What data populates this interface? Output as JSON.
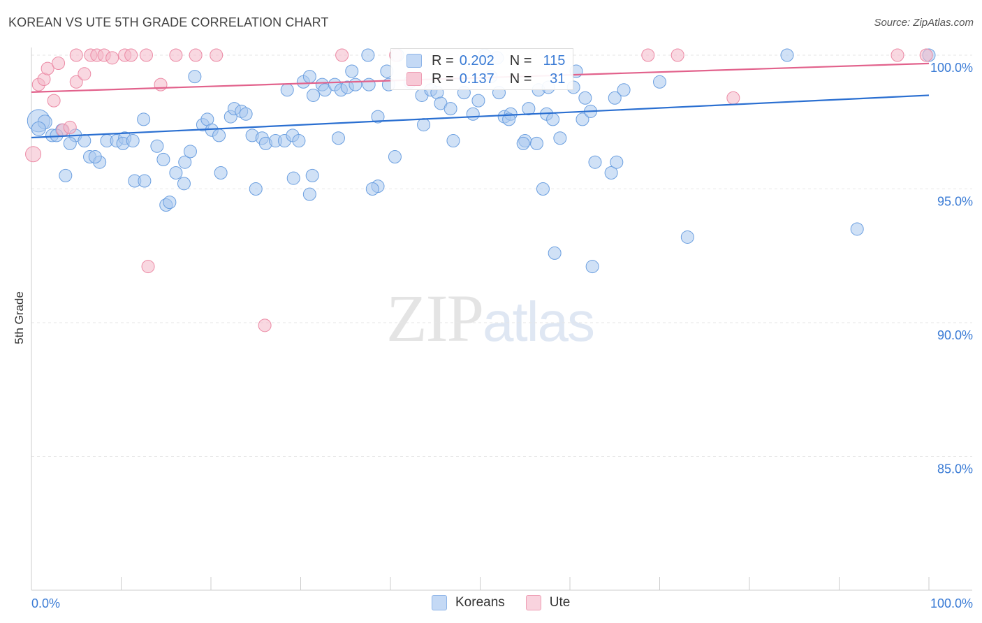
{
  "header": {
    "title": "KOREAN VS UTE 5TH GRADE CORRELATION CHART",
    "source": "Source: ZipAtlas.com"
  },
  "legend": {
    "rows": [
      {
        "r_label": "R =",
        "r_value": "0.202",
        "n_label": "N =",
        "n_value": "115",
        "color": "#a9c8ef"
      },
      {
        "r_label": "R =",
        "r_value": "0.137",
        "n_label": "N =",
        "n_value": "31",
        "color": "#f4b8c8"
      }
    ],
    "bottom": [
      {
        "label": "Koreans",
        "color": "#b4cff2"
      },
      {
        "label": "Ute",
        "color": "#f7c4d3"
      }
    ]
  },
  "watermark": {
    "zip": "ZIP",
    "atlas": "atlas"
  },
  "colors": {
    "korean_fill": "#a9c8ef",
    "korean_stroke": "#6b9fe0",
    "korean_line": "#2a6fd1",
    "ute_fill": "#f4b8c8",
    "ute_stroke": "#ec8aa5",
    "ute_line": "#e2628c",
    "grid": "#e6e6e6",
    "axis": "#cccccc",
    "tick_text": "#3a7bd5"
  },
  "chart_data": {
    "type": "scatter",
    "title": "KOREAN VS UTE 5TH GRADE CORRELATION CHART",
    "xlabel": "",
    "ylabel": "5th Grade",
    "xlim": [
      0,
      100
    ],
    "ylim": [
      80.7,
      100.7
    ],
    "x_ticks": [
      "0.0%",
      "100.0%"
    ],
    "y_ticks": [
      {
        "value": 100,
        "label": "100.0%"
      },
      {
        "value": 95,
        "label": "95.0%"
      },
      {
        "value": 90,
        "label": "90.0%"
      },
      {
        "value": 85,
        "label": "85.0%"
      }
    ],
    "grid": true,
    "series": [
      {
        "name": "Koreans",
        "r": 0.202,
        "n": 115,
        "trend": {
          "x": [
            0,
            100
          ],
          "y": [
            96.92,
            98.5
          ]
        },
        "points": [
          [
            0.8,
            97.55,
            16
          ],
          [
            1.5,
            97.5,
            10
          ],
          [
            0.8,
            97.25,
            10
          ],
          [
            2.3,
            97.0,
            9
          ],
          [
            3.4,
            97.2,
            9
          ],
          [
            2.8,
            97.0,
            9
          ],
          [
            4.9,
            97.0,
            9
          ],
          [
            4.3,
            96.7,
            9
          ],
          [
            5.9,
            96.8,
            9
          ],
          [
            6.5,
            96.2,
            9
          ],
          [
            7.6,
            96.0,
            9
          ],
          [
            8.4,
            96.8,
            9
          ],
          [
            9.5,
            96.8,
            9
          ],
          [
            7.1,
            96.2,
            9
          ],
          [
            3.8,
            95.5,
            9
          ],
          [
            10.4,
            96.9,
            9
          ],
          [
            10.2,
            96.7,
            9
          ],
          [
            11.3,
            96.8,
            9
          ],
          [
            12.5,
            97.6,
            9
          ],
          [
            11.5,
            95.3,
            9
          ],
          [
            12.6,
            95.3,
            9
          ],
          [
            14.0,
            96.6,
            9
          ],
          [
            14.7,
            96.1,
            9
          ],
          [
            17.1,
            96.0,
            9
          ],
          [
            16.1,
            95.6,
            9
          ],
          [
            17.7,
            96.4,
            9
          ],
          [
            15.0,
            94.4,
            9
          ],
          [
            15.4,
            94.5,
            9
          ],
          [
            17.0,
            95.2,
            9
          ],
          [
            18.2,
            99.2,
            9
          ],
          [
            19.1,
            97.4,
            9
          ],
          [
            19.6,
            97.6,
            9
          ],
          [
            20.1,
            97.2,
            9
          ],
          [
            20.9,
            97.0,
            9
          ],
          [
            22.2,
            97.7,
            9
          ],
          [
            22.6,
            98.0,
            9
          ],
          [
            23.4,
            97.9,
            9
          ],
          [
            23.9,
            97.8,
            9
          ],
          [
            21.1,
            95.6,
            9
          ],
          [
            24.6,
            97.0,
            9
          ],
          [
            25.7,
            96.9,
            9
          ],
          [
            26.1,
            96.7,
            9
          ],
          [
            27.2,
            96.8,
            9
          ],
          [
            28.2,
            96.8,
            9
          ],
          [
            29.1,
            97.0,
            9
          ],
          [
            29.8,
            96.8,
            9
          ],
          [
            25.0,
            95.0,
            9
          ],
          [
            28.5,
            98.7,
            9
          ],
          [
            30.3,
            99.0,
            9
          ],
          [
            31.0,
            99.2,
            9
          ],
          [
            31.4,
            98.5,
            9
          ],
          [
            32.4,
            98.9,
            9
          ],
          [
            32.7,
            98.7,
            9
          ],
          [
            33.8,
            98.9,
            9
          ],
          [
            34.5,
            98.7,
            9
          ],
          [
            35.2,
            98.8,
            9
          ],
          [
            36.1,
            98.9,
            9
          ],
          [
            37.6,
            98.9,
            9
          ],
          [
            35.7,
            99.4,
            9
          ],
          [
            29.2,
            95.4,
            9
          ],
          [
            31.0,
            94.8,
            9
          ],
          [
            37.5,
            100.0,
            9
          ],
          [
            38.6,
            97.7,
            9
          ],
          [
            39.6,
            99.4,
            9
          ],
          [
            40.8,
            100.0,
            9
          ],
          [
            39.8,
            98.9,
            9
          ],
          [
            42.2,
            99.0,
            9
          ],
          [
            43.5,
            98.5,
            9
          ],
          [
            43.7,
            97.4,
            9
          ],
          [
            44.5,
            98.7,
            9
          ],
          [
            45.2,
            98.6,
            9
          ],
          [
            45.6,
            98.2,
            9
          ],
          [
            46.7,
            98.0,
            9
          ],
          [
            47.0,
            96.8,
            9
          ],
          [
            40.5,
            96.2,
            9
          ],
          [
            38.6,
            95.1,
            9
          ],
          [
            38.0,
            95.0,
            9
          ],
          [
            34.2,
            96.9,
            9
          ],
          [
            31.3,
            95.5,
            9
          ],
          [
            48.2,
            98.6,
            9
          ],
          [
            49.2,
            97.8,
            9
          ],
          [
            49.8,
            98.3,
            9
          ],
          [
            50.5,
            100.0,
            9
          ],
          [
            51.2,
            99.2,
            9
          ],
          [
            52.1,
            98.6,
            9
          ],
          [
            52.7,
            97.7,
            9
          ],
          [
            53.4,
            97.8,
            9
          ],
          [
            51.9,
            99.9,
            9
          ],
          [
            53.2,
            97.6,
            9
          ],
          [
            55.4,
            98.0,
            9
          ],
          [
            56.5,
            98.7,
            9
          ],
          [
            57.6,
            98.8,
            9
          ],
          [
            57.4,
            97.8,
            9
          ],
          [
            58.9,
            96.9,
            9
          ],
          [
            55.0,
            96.8,
            9
          ],
          [
            54.8,
            96.7,
            9
          ],
          [
            58.1,
            97.6,
            9
          ],
          [
            60.4,
            98.8,
            9
          ],
          [
            61.4,
            97.6,
            9
          ],
          [
            62.3,
            97.9,
            9
          ],
          [
            60.7,
            99.4,
            9
          ],
          [
            61.7,
            98.4,
            9
          ],
          [
            62.8,
            96.0,
            9
          ],
          [
            65.0,
            98.4,
            9
          ],
          [
            66.0,
            98.7,
            9
          ],
          [
            56.3,
            96.7,
            9
          ],
          [
            57.0,
            95.0,
            9
          ],
          [
            58.3,
            92.6,
            9
          ],
          [
            62.5,
            92.1,
            9
          ],
          [
            64.6,
            95.6,
            9
          ],
          [
            65.2,
            96.0,
            9
          ],
          [
            70.0,
            99.0,
            9
          ],
          [
            73.1,
            93.2,
            9
          ],
          [
            84.2,
            100.0,
            9
          ],
          [
            92.0,
            93.5,
            9
          ],
          [
            100.0,
            100.0,
            9
          ]
        ]
      },
      {
        "name": "Ute",
        "r": 0.137,
        "n": 31,
        "trend": {
          "x": [
            0,
            100
          ],
          "y": [
            98.62,
            99.69
          ]
        },
        "points": [
          [
            0.2,
            96.3,
            11
          ],
          [
            0.8,
            98.9,
            9
          ],
          [
            1.4,
            99.1,
            9
          ],
          [
            1.8,
            99.5,
            9
          ],
          [
            2.5,
            98.3,
            9
          ],
          [
            3.0,
            99.7,
            9
          ],
          [
            3.5,
            97.2,
            9
          ],
          [
            4.3,
            97.3,
            9
          ],
          [
            5.0,
            100.0,
            9
          ],
          [
            5.0,
            99.0,
            9
          ],
          [
            5.9,
            99.3,
            9
          ],
          [
            6.6,
            100.0,
            9
          ],
          [
            7.3,
            100.0,
            9
          ],
          [
            8.1,
            100.0,
            9
          ],
          [
            9.0,
            99.9,
            9
          ],
          [
            10.4,
            100.0,
            9
          ],
          [
            11.1,
            100.0,
            9
          ],
          [
            12.8,
            100.0,
            9
          ],
          [
            14.4,
            98.9,
            9
          ],
          [
            13.0,
            92.1,
            9
          ],
          [
            16.1,
            100.0,
            9
          ],
          [
            18.3,
            100.0,
            9
          ],
          [
            20.6,
            100.0,
            9
          ],
          [
            34.6,
            100.0,
            9
          ],
          [
            26.0,
            89.9,
            9
          ],
          [
            40.6,
            100.0,
            9
          ],
          [
            68.7,
            100.0,
            9
          ],
          [
            72.0,
            100.0,
            9
          ],
          [
            78.2,
            98.4,
            9
          ],
          [
            96.5,
            100.0,
            9
          ],
          [
            99.7,
            100.0,
            9
          ]
        ]
      }
    ]
  }
}
